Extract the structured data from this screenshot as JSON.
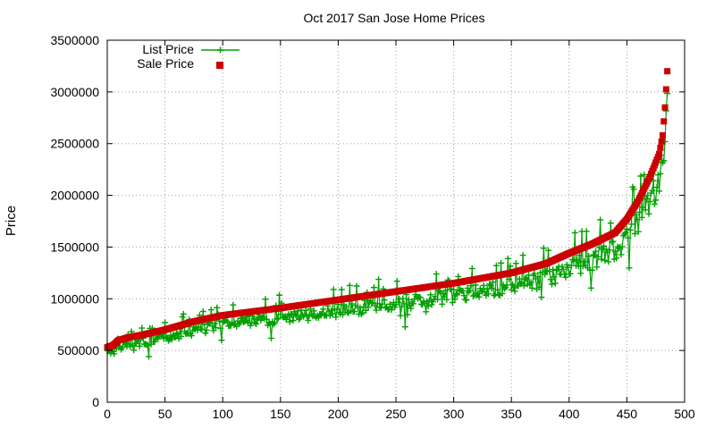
{
  "chart_data": {
    "type": "scatter",
    "title": "Oct 2017 San Jose Home Prices",
    "xlabel": "",
    "ylabel": "Price",
    "xlim": [
      0,
      500
    ],
    "ylim": [
      0,
      3500000
    ],
    "x_ticks": [
      "0",
      "50",
      "100",
      "150",
      "200",
      "250",
      "300",
      "350",
      "400",
      "450",
      "500"
    ],
    "y_ticks": [
      "0",
      "500000",
      "1000000",
      "1500000",
      "2000000",
      "2500000",
      "3000000",
      "3500000"
    ],
    "grid": true,
    "legend_position": "top-left",
    "colors": {
      "list": "#00a000",
      "sale": "#cc0000"
    },
    "n_points": 485,
    "sale_anchors": [
      [
        0,
        530000
      ],
      [
        5,
        550000
      ],
      [
        10,
        600000
      ],
      [
        20,
        630000
      ],
      [
        30,
        650000
      ],
      [
        50,
        700000
      ],
      [
        75,
        780000
      ],
      [
        100,
        840000
      ],
      [
        150,
        910000
      ],
      [
        200,
        990000
      ],
      [
        250,
        1070000
      ],
      [
        300,
        1150000
      ],
      [
        350,
        1250000
      ],
      [
        380,
        1340000
      ],
      [
        400,
        1440000
      ],
      [
        420,
        1530000
      ],
      [
        440,
        1640000
      ],
      [
        450,
        1770000
      ],
      [
        460,
        1950000
      ],
      [
        470,
        2180000
      ],
      [
        478,
        2400000
      ],
      [
        481,
        2580000
      ],
      [
        483,
        2850000
      ],
      [
        485,
        3200000
      ]
    ],
    "series": [
      {
        "name": "List Price",
        "marker": "plus",
        "line": true
      },
      {
        "name": "Sale Price",
        "marker": "square",
        "line": false
      }
    ]
  }
}
